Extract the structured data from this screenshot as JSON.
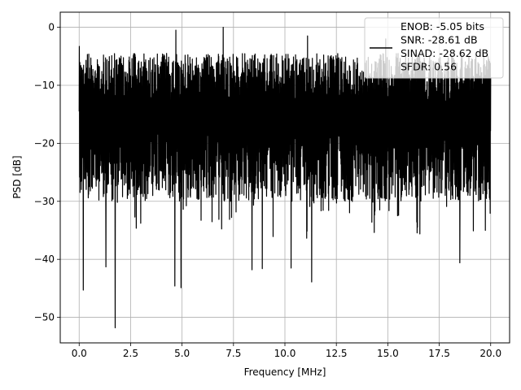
{
  "chart_data": {
    "type": "line",
    "title": "",
    "xlabel": "Frequency [MHz]",
    "ylabel": "PSD [dB]",
    "xlim": [
      -0.92,
      20.92
    ],
    "ylim": [
      -54.4,
      2.6
    ],
    "x_ticks": [
      0.0,
      2.5,
      5.0,
      7.5,
      10.0,
      12.5,
      15.0,
      17.5,
      20.0
    ],
    "x_tick_labels": [
      "0.0",
      "2.5",
      "5.0",
      "7.5",
      "10.0",
      "12.5",
      "15.0",
      "17.5",
      "20.0"
    ],
    "y_ticks": [
      0,
      -10,
      -20,
      -30,
      -40,
      -50
    ],
    "y_tick_labels": [
      "0",
      "−10",
      "−20",
      "−30",
      "−40",
      "−50"
    ],
    "grid": true,
    "legend_position": "top-right",
    "series": [
      {
        "name": "ENOB: -5.05 bits\nSNR: -28.61 dB\nSINAD: -28.62 dB\nSFDR: 0.56",
        "legend_lines": [
          "ENOB: -5.05 bits",
          "SNR: -28.61 dB",
          "SINAD: -28.62 dB",
          "SFDR: 0.56"
        ],
        "color": "#000000",
        "x_range": [
          0.0,
          20.0
        ],
        "noise_floor_approx": [
          -5,
          -30
        ],
        "peaks": [
          {
            "x": 0.0,
            "y": -3.3
          },
          {
            "x": 4.7,
            "y": -0.5
          },
          {
            "x": 7.0,
            "y": 0.0
          },
          {
            "x": 11.1,
            "y": -1.5
          },
          {
            "x": 14.9,
            "y": -2.0
          }
        ],
        "deep_nulls": [
          {
            "x": 0.2,
            "y": -45.3
          },
          {
            "x": 1.75,
            "y": -51.8
          },
          {
            "x": 1.3,
            "y": -41.3
          },
          {
            "x": 4.65,
            "y": -44.6
          },
          {
            "x": 4.95,
            "y": -44.9
          },
          {
            "x": 8.4,
            "y": -41.8
          },
          {
            "x": 8.9,
            "y": -41.6
          },
          {
            "x": 10.3,
            "y": -41.5
          },
          {
            "x": 11.3,
            "y": -43.9
          },
          {
            "x": 18.5,
            "y": -40.6
          }
        ]
      }
    ]
  }
}
